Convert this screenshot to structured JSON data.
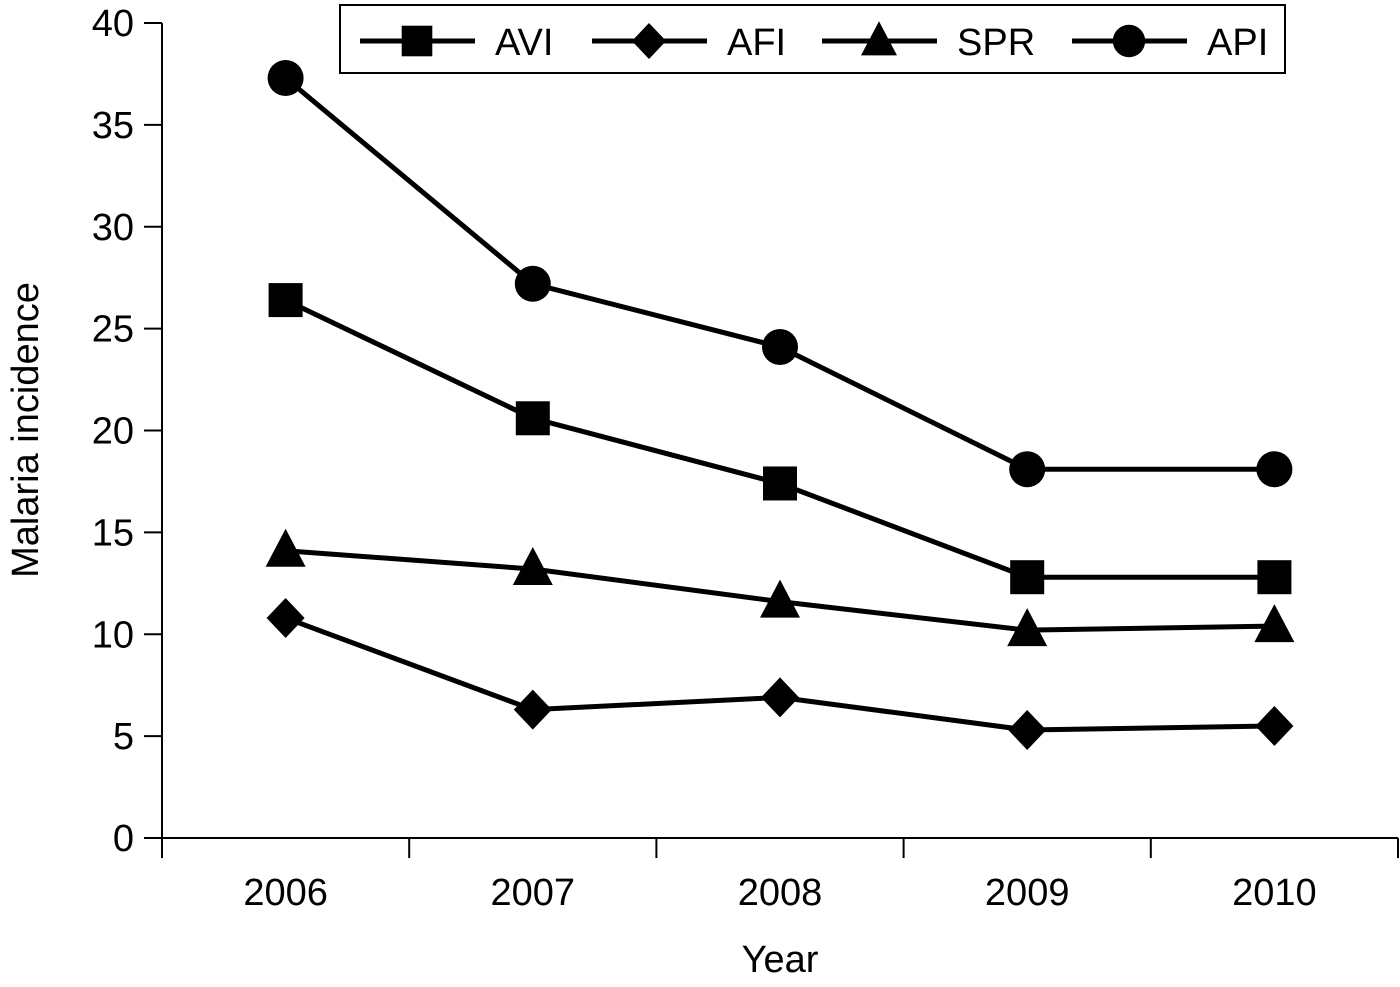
{
  "chart_data": {
    "type": "line",
    "title": "",
    "xlabel": "Year",
    "ylabel": "Malaria incidence",
    "categories": [
      "2006",
      "2007",
      "2008",
      "2009",
      "2010"
    ],
    "ylim": [
      0,
      40
    ],
    "yticks": [
      "0",
      "5",
      "10",
      "15",
      "20",
      "25",
      "30",
      "35",
      "40"
    ],
    "grid": false,
    "legend_position": "top",
    "series": [
      {
        "name": "AVI",
        "marker": "square",
        "values": [
          26.4,
          20.6,
          17.4,
          12.8,
          12.8
        ]
      },
      {
        "name": "AFI",
        "marker": "diamond",
        "values": [
          10.8,
          6.3,
          6.9,
          5.3,
          5.5
        ]
      },
      {
        "name": "SPR",
        "marker": "triangle",
        "values": [
          14.1,
          13.2,
          11.6,
          10.2,
          10.4
        ]
      },
      {
        "name": "API",
        "marker": "circle",
        "values": [
          37.3,
          27.2,
          24.1,
          18.1,
          18.1
        ]
      }
    ],
    "colors": {
      "line": "#000000",
      "background": "#ffffff"
    }
  }
}
